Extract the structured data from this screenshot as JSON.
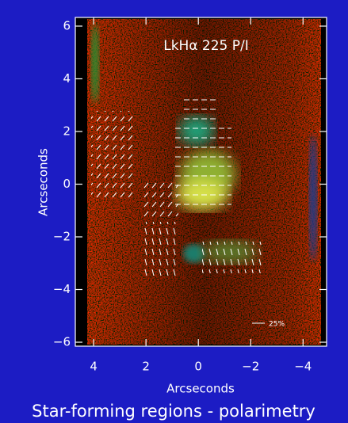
{
  "chart_data": {
    "type": "image",
    "title": "LkHα 225 P/I",
    "xlabel": "Arcseconds",
    "ylabel": "Arcseconds",
    "caption": "Star-forming regions - polarimetry",
    "scale_label": "25%",
    "xlim": [
      4.7,
      -4.9
    ],
    "ylim": [
      -6.15,
      6.33
    ],
    "xticks": [
      4,
      2,
      0,
      {
        "value": -2,
        "label": "−2"
      },
      {
        "value": -4,
        "label": "−4"
      }
    ],
    "yticks": [
      {
        "value": -6,
        "label": "−6"
      },
      {
        "value": -4,
        "label": "−4"
      },
      {
        "value": -2,
        "label": "−2"
      },
      0,
      2,
      4,
      6
    ]
  }
}
